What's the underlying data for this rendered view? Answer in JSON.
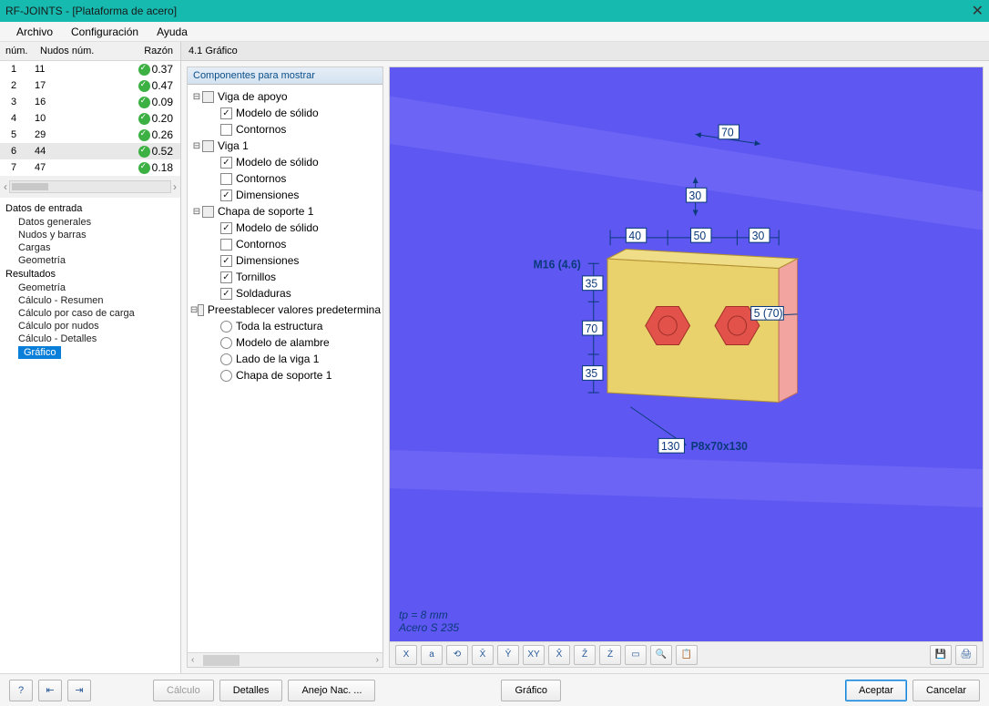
{
  "titlebar": {
    "text": "RF-JOINTS - [Plataforma de acero]",
    "close": "✕"
  },
  "menu": {
    "file": "Archivo",
    "config": "Configuración",
    "help": "Ayuda"
  },
  "grid": {
    "headers": {
      "num": "núm.",
      "knots": "Nudos núm.",
      "ratio": "Razón"
    },
    "rows": [
      {
        "n": "1",
        "k": "11",
        "r": "0.37"
      },
      {
        "n": "2",
        "k": "17",
        "r": "0.47"
      },
      {
        "n": "3",
        "k": "16",
        "r": "0.09"
      },
      {
        "n": "4",
        "k": "10",
        "r": "0.20"
      },
      {
        "n": "5",
        "k": "29",
        "r": "0.26"
      },
      {
        "n": "6",
        "k": "44",
        "r": "0.52",
        "sel": true
      },
      {
        "n": "7",
        "k": "47",
        "r": "0.18"
      }
    ]
  },
  "nav": {
    "in": "Datos de entrada",
    "in_items": [
      "Datos generales",
      "Nudos y barras",
      "Cargas",
      "Geometría"
    ],
    "out": "Resultados",
    "out_items": [
      "Geometría",
      "Cálculo - Resumen",
      "Cálculo por caso de carga",
      "Cálculo por nudos",
      "Cálculo - Detalles"
    ],
    "sel": "Gráfico"
  },
  "panel": {
    "title": "4.1 Gráfico"
  },
  "tree": {
    "title": "Componentes para mostrar",
    "n": {
      "viga_apoyo": "Viga de apoyo",
      "modelo_solido": "Modelo de sólido",
      "contornos": "Contornos",
      "viga1": "Viga 1",
      "dimensiones": "Dimensiones",
      "chapa1": "Chapa de soporte 1",
      "tornillos": "Tornillos",
      "soldaduras": "Soldaduras",
      "preset": "Preestablecer valores predetermina",
      "toda": "Toda la estructura",
      "alambre": "Modelo de alambre",
      "lado": "Lado de la viga 1",
      "chapa_sop": "Chapa de soporte 1"
    }
  },
  "view": {
    "dims": {
      "d70t": "70",
      "d30": "30",
      "d40": "40",
      "d50": "50",
      "d30b": "30",
      "d35a": "35",
      "d70m": "70",
      "d35b": "35",
      "d130": "130"
    },
    "labels": {
      "m16": "M16 (4.6)",
      "bolt": "5 (70)",
      "plate": "P8x70x130"
    },
    "status1": "tp = 8 mm",
    "status2": "Acero S 235",
    "colors": {
      "bg": "#5f57f2",
      "bg2": "#6c64f4",
      "plate": "#e9d16c",
      "plate_side": "#f2a5a0",
      "bolt": "#e2524a",
      "dim": "#0a3a7a"
    }
  },
  "toolbar_icons": [
    "X",
    "a",
    "⟲",
    "X̄",
    "Ȳ",
    "XY",
    "X̂",
    "Ẑ",
    "Ż",
    "▭",
    "🔍",
    "📋"
  ],
  "toolbar_right": [
    "💾",
    "🖨"
  ],
  "footer": {
    "calc": "Cálculo",
    "det": "Detalles",
    "anejo": "Anejo Nac. ...",
    "graf": "Gráfico",
    "ok": "Aceptar",
    "cancel": "Cancelar",
    "help": "?",
    "i1": "⇤",
    "i2": "⇥"
  }
}
